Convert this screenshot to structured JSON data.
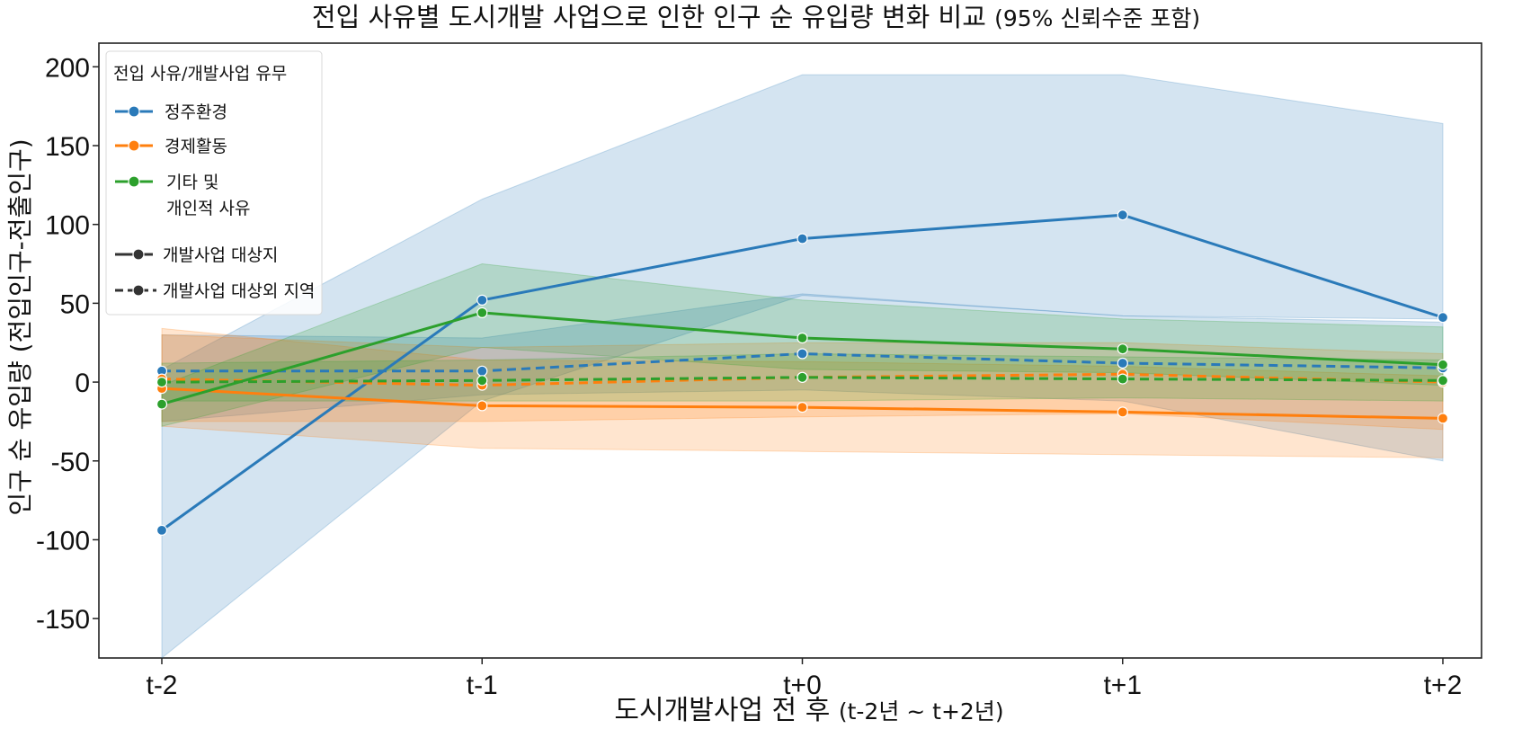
{
  "chart_data": {
    "type": "line",
    "title": "전입 사유별 도시개발 사업으로 인한 인구 순 유입량 변화 비교",
    "title_suffix": "(95% 신뢰수준 포함)",
    "xlabel": "도시개발사업 전 후",
    "xlabel_suffix": "(t-2년 ~ t+2년)",
    "ylabel": "인구 순 유입량 (전입인구-전출인구)",
    "categories": [
      "t-2",
      "t-1",
      "t+0",
      "t+1",
      "t+2"
    ],
    "ylim": [
      -175,
      215
    ],
    "yticks": [
      200,
      150,
      100,
      50,
      0,
      -50,
      -100,
      -150
    ],
    "grid": false,
    "legend": {
      "position": "top-left",
      "title": "전입 사유/개발사업 유무",
      "reason_entries": [
        {
          "name": "정주환경",
          "color": "#2a7ab9"
        },
        {
          "name": "경제활동",
          "color": "#ff7f0e"
        },
        {
          "name": "기타 및",
          "name_line2": "개인적 사유",
          "color": "#2ca02c"
        }
      ],
      "style_entries": [
        {
          "name": "개발사업 대상지",
          "style": "solid"
        },
        {
          "name": "개발사업 대상외 지역",
          "style": "dashed"
        }
      ]
    },
    "series": [
      {
        "name": "정주환경 · 개발사업 대상지",
        "reason": "정주환경",
        "style": "solid",
        "color": "#2a7ab9",
        "values": [
          -94,
          52,
          91,
          106,
          41
        ],
        "ci_lower": [
          -175,
          -12,
          55,
          42,
          40
        ],
        "ci_upper": [
          8,
          116,
          195,
          195,
          164
        ]
      },
      {
        "name": "정주환경 · 개발사업 대상외 지역",
        "reason": "정주환경",
        "style": "dashed",
        "color": "#2a7ab9",
        "values": [
          7,
          7,
          18,
          12,
          9
        ],
        "ci_lower": [
          -25,
          -8,
          -5,
          -12,
          -50
        ],
        "ci_upper": [
          30,
          28,
          56,
          42,
          38
        ]
      },
      {
        "name": "경제활동 · 개발사업 대상지",
        "reason": "경제활동",
        "style": "solid",
        "color": "#ff7f0e",
        "values": [
          -4,
          -15,
          -16,
          -19,
          -23
        ],
        "ci_lower": [
          -28,
          -42,
          -44,
          -46,
          -48
        ],
        "ci_upper": [
          34,
          14,
          13,
          10,
          4
        ]
      },
      {
        "name": "경제활동 · 개발사업 대상외 지역",
        "reason": "경제활동",
        "style": "dashed",
        "color": "#ff7f0e",
        "values": [
          2,
          -2,
          3,
          5,
          0
        ],
        "ci_lower": [
          -25,
          -25,
          -22,
          -20,
          -30
        ],
        "ci_upper": [
          30,
          22,
          25,
          25,
          18
        ]
      },
      {
        "name": "기타 및 개인적 사유 · 개발사업 대상지",
        "reason": "기타 및 개인적 사유",
        "style": "solid",
        "color": "#2ca02c",
        "values": [
          -14,
          44,
          28,
          21,
          11
        ],
        "ci_lower": [
          -28,
          22,
          8,
          6,
          -2
        ],
        "ci_upper": [
          -2,
          75,
          52,
          40,
          35
        ]
      },
      {
        "name": "기타 및 개인적 사유 · 개발사업 대상외 지역",
        "reason": "기타 및 개인적 사유",
        "style": "dashed",
        "color": "#2ca02c",
        "values": [
          0,
          1,
          3,
          2,
          1
        ],
        "ci_lower": [
          -12,
          -12,
          -12,
          -10,
          -12
        ],
        "ci_upper": [
          12,
          14,
          18,
          16,
          14
        ]
      }
    ]
  }
}
